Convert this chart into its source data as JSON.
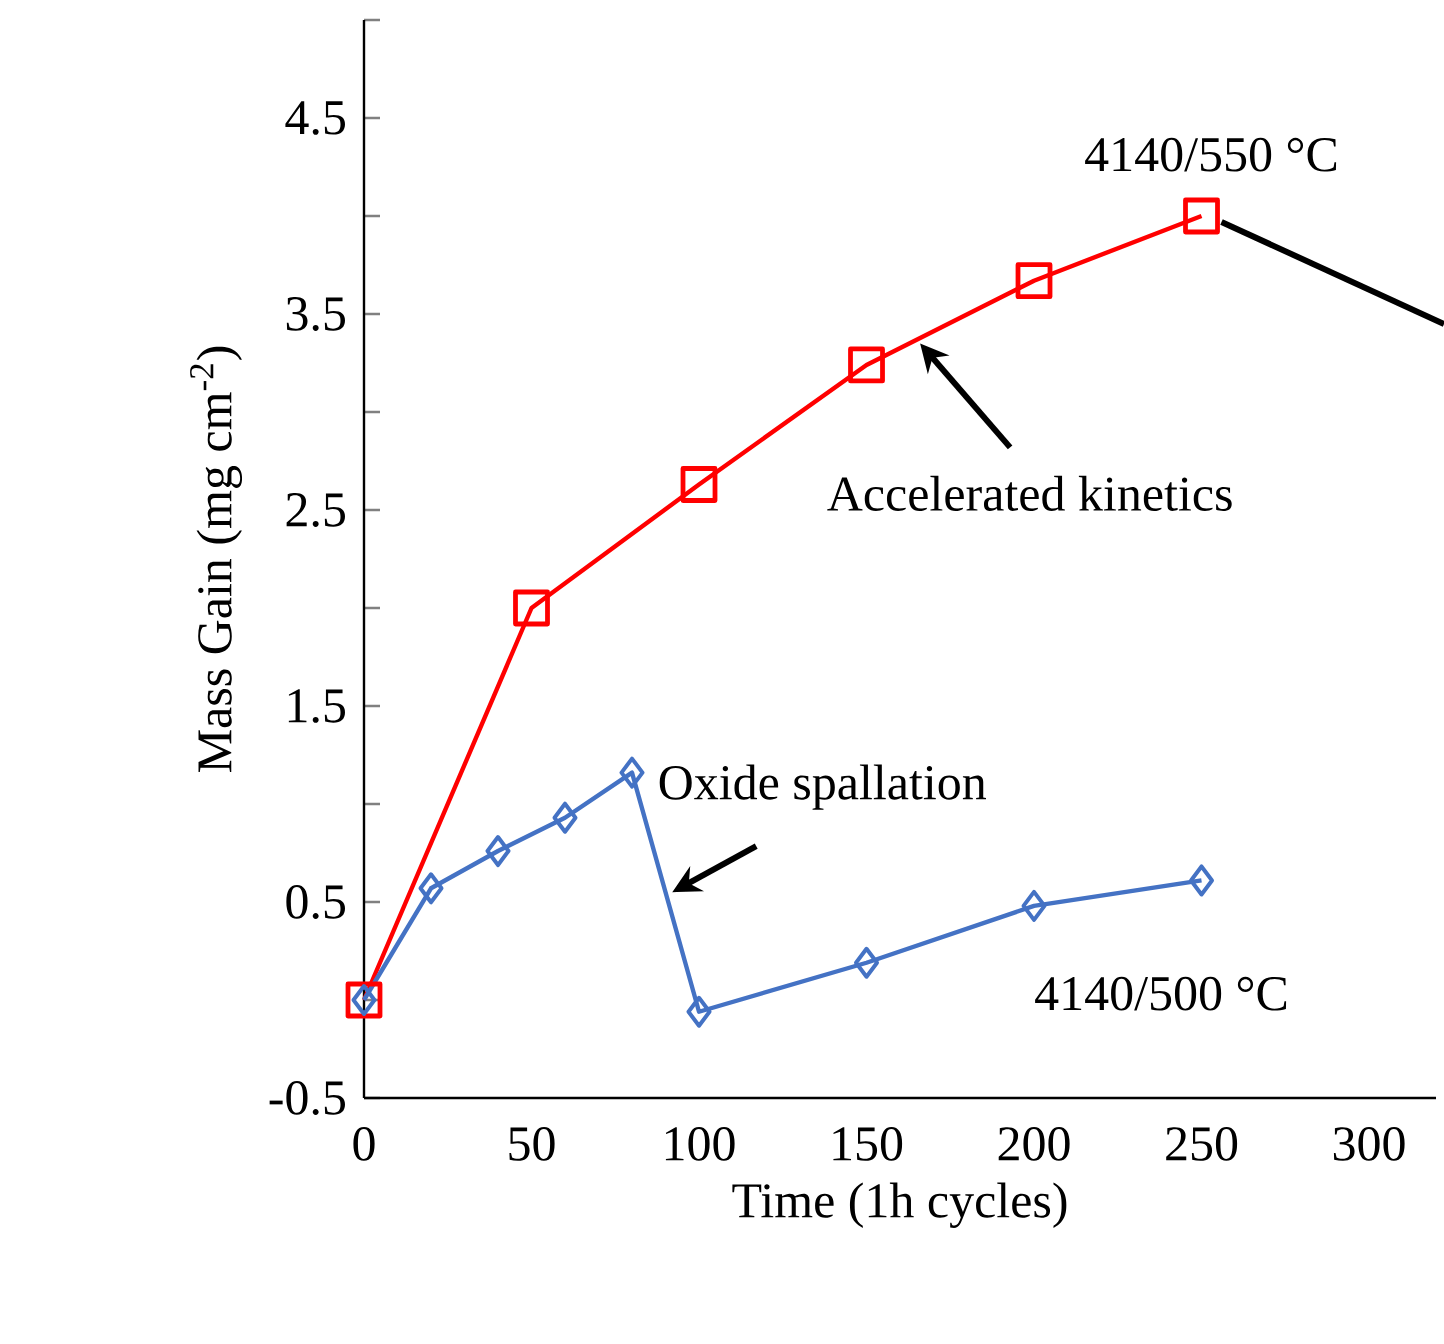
{
  "chart_data": {
    "type": "line",
    "xlabel": "Time (1h cycles)",
    "ylabel": "Mass Gain (mg cm$^{-2}$)",
    "xlim": [
      0,
      320
    ],
    "xticks": [
      0,
      50,
      100,
      150,
      200,
      250,
      300
    ],
    "ylim": [
      -0.5,
      5.0
    ],
    "yticks": [
      -0.5,
      {
        "value": 0,
        "label": null
      },
      0.5,
      {
        "value": 1,
        "label": null
      },
      1.5,
      {
        "value": 2,
        "label": null
      },
      2.5,
      {
        "value": 3,
        "label": null
      },
      3.5,
      {
        "value": 4,
        "label": null
      },
      4.5,
      {
        "value": 5,
        "label": null
      }
    ],
    "grid": false,
    "legend": false,
    "line_style": "solid",
    "series": [
      {
        "name": "4140/550 °C",
        "color": "#ff0000",
        "marker": "square",
        "x": [
          0,
          50,
          100,
          150,
          200,
          250
        ],
        "values": [
          0.0,
          2.0,
          2.63,
          3.24,
          3.67,
          4.0
        ]
      },
      {
        "name": "4140/500 °C",
        "color": "#4472c4",
        "marker": "diamond",
        "x": [
          0,
          20,
          40,
          60,
          80,
          100,
          150,
          200,
          250
        ],
        "values": [
          0.0,
          0.57,
          0.76,
          0.93,
          1.16,
          -0.06,
          0.19,
          0.48,
          0.61
        ]
      }
    ],
    "annotations": [
      {
        "text": "Accelerated kinetics",
        "x": 166,
        "y": 3.35
      },
      {
        "text": "Oxide spallation",
        "x": 92,
        "y": 0.55
      }
    ]
  }
}
